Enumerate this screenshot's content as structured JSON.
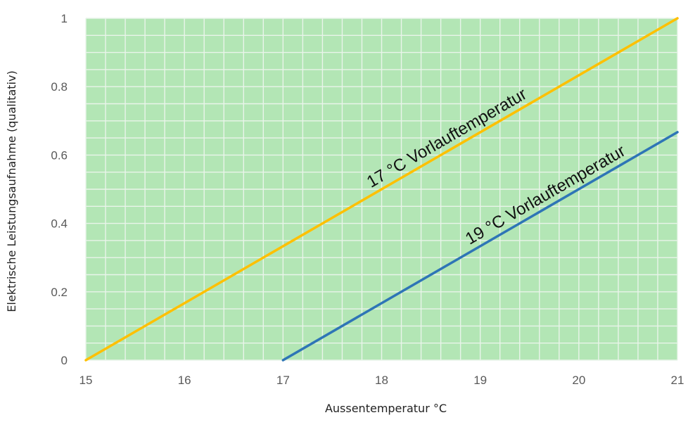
{
  "chart_data": {
    "type": "line",
    "xlabel": "Aussentemperatur °C",
    "ylabel": "Elektrische Leistungsaufnahme (qualitativ)",
    "xlim": [
      15,
      21
    ],
    "ylim": [
      0,
      1
    ],
    "x_ticks": [
      "15",
      "16",
      "17",
      "18",
      "19",
      "20",
      "21"
    ],
    "y_ticks": [
      "0",
      "0.2",
      "0.4",
      "0.6",
      "0.8",
      "1"
    ],
    "grid": true,
    "legend": "none",
    "colors": {
      "plot_bg": "#b3e6b5",
      "grid": "#e9f4ea",
      "series_1": "#ffc000",
      "series_2": "#2e75b6"
    },
    "series": [
      {
        "name": "17 °C Vorlauftemperatur",
        "x": [
          15,
          21
        ],
        "y": [
          0,
          1
        ],
        "color": "#ffc000"
      },
      {
        "name": "19 °C Vorlauftemperatur",
        "x": [
          17,
          21
        ],
        "y": [
          0,
          0.667
        ],
        "color": "#2e75b6"
      }
    ]
  }
}
